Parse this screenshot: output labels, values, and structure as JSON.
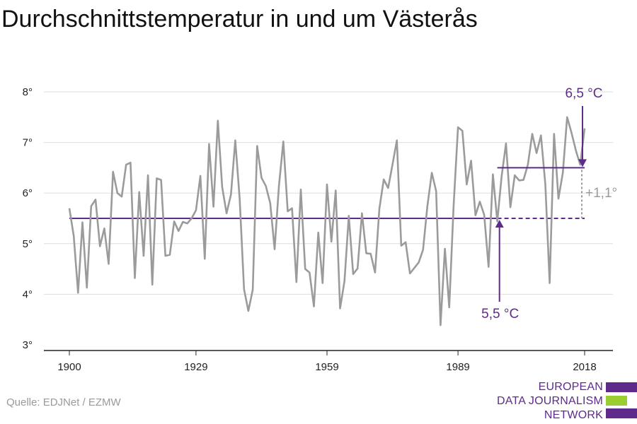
{
  "title": "Durchschnittstemperatur in und um Västerås",
  "source": "Quelle: EDJNet / EZMW",
  "logo": {
    "lines": [
      "EUROPEAN",
      "DATA JOURNALISM",
      "NETWORK"
    ],
    "colors": [
      "#5e2b8c",
      "#9acd32",
      "#5e2b8c"
    ]
  },
  "colors": {
    "series": "#9b9b9b",
    "accent": "#5e2b8c",
    "grid": "#dddddd",
    "diff": "#9b9b9b"
  },
  "chart_data": {
    "type": "line",
    "title": "Durchschnittstemperatur in und um Västerås",
    "xlabel": "",
    "ylabel": "",
    "xlim": [
      1900,
      2018
    ],
    "ylim": [
      3,
      8
    ],
    "x_ticks": [
      1900,
      1929,
      1959,
      1989,
      2018
    ],
    "y_ticks": [
      3,
      4,
      5,
      6,
      7,
      8
    ],
    "y_tick_suffix": "°",
    "grid": true,
    "series": [
      {
        "x": [
          1900,
          1901,
          1902,
          1903,
          1904,
          1905,
          1906,
          1907,
          1908,
          1909,
          1910,
          1911,
          1912,
          1913,
          1914,
          1915,
          1916,
          1917,
          1918,
          1919,
          1920,
          1921,
          1922,
          1923,
          1924,
          1925,
          1926,
          1927,
          1928,
          1929,
          1930,
          1931,
          1932,
          1933,
          1934,
          1935,
          1936,
          1937,
          1938,
          1939,
          1940,
          1941,
          1942,
          1943,
          1944,
          1945,
          1946,
          1947,
          1948,
          1949,
          1950,
          1951,
          1952,
          1953,
          1954,
          1955,
          1956,
          1957,
          1958,
          1959,
          1960,
          1961,
          1962,
          1963,
          1964,
          1965,
          1966,
          1967,
          1968,
          1969,
          1970,
          1971,
          1972,
          1973,
          1974,
          1975,
          1976,
          1977,
          1978,
          1979,
          1980,
          1981,
          1982,
          1983,
          1984,
          1985,
          1986,
          1987,
          1988,
          1989,
          1990,
          1991,
          1992,
          1993,
          1994,
          1995,
          1996,
          1997,
          1998,
          1999,
          2000,
          2001,
          2002,
          2003,
          2004,
          2005,
          2006,
          2007,
          2008,
          2009,
          2010,
          2011,
          2012,
          2013,
          2014,
          2015,
          2016,
          2017,
          2018
        ],
        "values": [
          5.7,
          5.15,
          4.03,
          5.42,
          4.13,
          5.74,
          5.87,
          4.95,
          5.3,
          4.6,
          6.42,
          6.0,
          5.93,
          6.56,
          6.6,
          4.32,
          6.02,
          4.76,
          6.35,
          4.19,
          6.29,
          6.26,
          4.76,
          4.78,
          5.44,
          5.25,
          5.43,
          5.4,
          5.5,
          5.66,
          6.34,
          4.7,
          6.97,
          5.73,
          7.43,
          6.12,
          5.6,
          5.97,
          7.04,
          5.89,
          4.1,
          3.67,
          4.09,
          6.93,
          6.3,
          6.14,
          5.8,
          4.89,
          6.14,
          7.02,
          5.64,
          5.7,
          4.24,
          6.07,
          4.5,
          4.43,
          3.76,
          5.22,
          4.22,
          6.17,
          5.04,
          6.05,
          3.72,
          4.26,
          5.55,
          4.4,
          4.51,
          5.6,
          4.81,
          4.8,
          4.43,
          5.69,
          6.27,
          6.1,
          6.56,
          7.04,
          4.96,
          5.03,
          4.41,
          4.52,
          4.63,
          4.88,
          5.75,
          6.4,
          6.04,
          3.39,
          4.9,
          3.74,
          5.75,
          7.3,
          7.23,
          6.17,
          6.64,
          5.56,
          5.83,
          5.57,
          4.54,
          6.37,
          5.44,
          6.34,
          6.98,
          5.72,
          6.35,
          6.25,
          6.26,
          6.56,
          7.17,
          6.79,
          7.14,
          6.17,
          4.22,
          7.17,
          5.89,
          6.4,
          7.5,
          7.19,
          6.84,
          6.56,
          7.28
        ]
      }
    ],
    "baseline": {
      "value": 5.5,
      "label": "5,5 °C",
      "from": 1900,
      "to": 2018
    },
    "recent_mean": {
      "value": 6.5,
      "label": "6,5 °C",
      "from": 1998,
      "to": 2018
    },
    "difference_label": "+1,1°"
  }
}
